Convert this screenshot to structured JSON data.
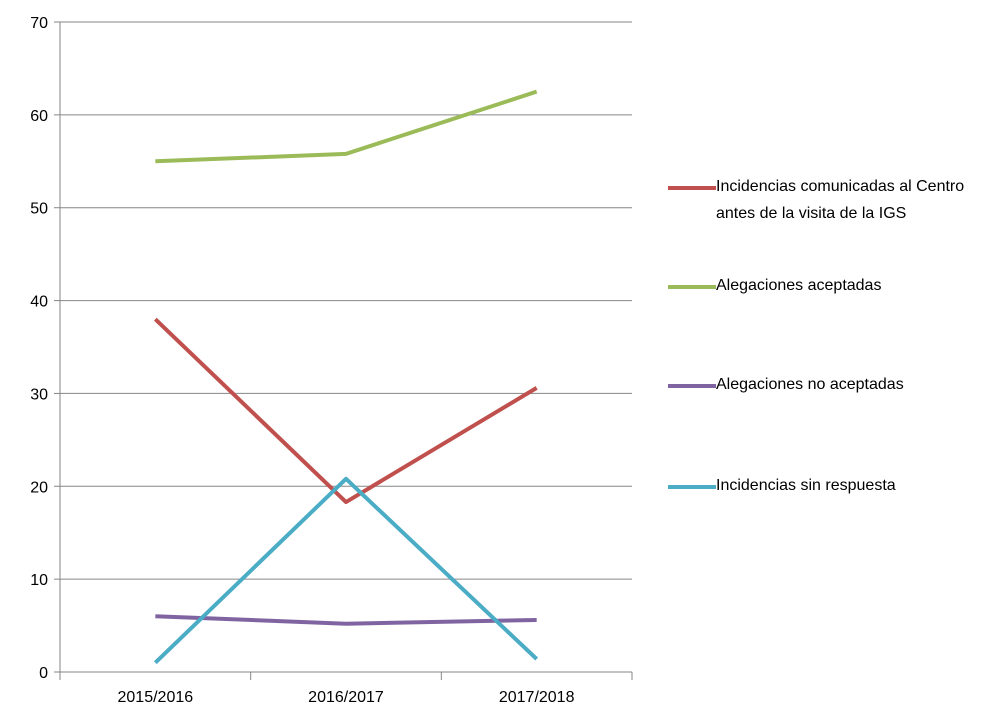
{
  "chart_data": {
    "type": "line",
    "categories": [
      "2015/2016",
      "2016/2017",
      "2017/2018"
    ],
    "series": [
      {
        "name": "Incidencias comunicadas al Centro antes de la visita de la IGS",
        "color": "#c0504d",
        "values": [
          38,
          18.3,
          30.6
        ]
      },
      {
        "name": "Alegaciones aceptadas",
        "color": "#9bbb59",
        "values": [
          55,
          55.8,
          62.5
        ]
      },
      {
        "name": "Alegaciones no aceptadas",
        "color": "#8064a2",
        "values": [
          6,
          5.2,
          5.6
        ]
      },
      {
        "name": "Incidencias sin respuesta",
        "color": "#4bacc6",
        "values": [
          1,
          20.8,
          1.4
        ]
      }
    ],
    "ylim": [
      0,
      70
    ],
    "yticks": [
      0,
      10,
      20,
      30,
      40,
      50,
      60,
      70
    ],
    "grid": true,
    "legend": "right"
  }
}
